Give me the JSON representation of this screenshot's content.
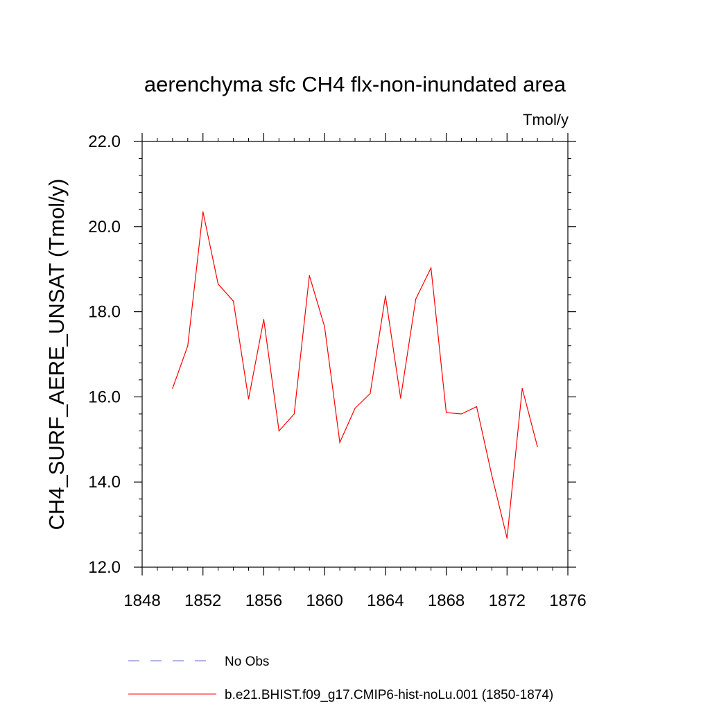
{
  "chart_data": {
    "type": "line",
    "title": "aerenchyma sfc CH4 flx-non-inundated area",
    "units_label": "Tmol/y",
    "ylabel": "CH4_SURF_AERE_UNSAT  (Tmol/y)",
    "xlabel": "",
    "xlim": [
      1848,
      1876
    ],
    "ylim": [
      12.0,
      22.0
    ],
    "x_ticks": [
      1848,
      1852,
      1856,
      1860,
      1864,
      1868,
      1872,
      1876
    ],
    "x_tick_labels": [
      "1848",
      "1852",
      "1856",
      "1860",
      "1864",
      "1868",
      "1872",
      "1876"
    ],
    "y_ticks": [
      12.0,
      14.0,
      16.0,
      18.0,
      20.0,
      22.0
    ],
    "y_tick_labels": [
      "12.0",
      "14.0",
      "16.0",
      "18.0",
      "20.0",
      "22.0"
    ],
    "grid": false,
    "legend_placement": "bottom",
    "x": [
      1850,
      1851,
      1852,
      1853,
      1854,
      1855,
      1856,
      1857,
      1858,
      1859,
      1860,
      1861,
      1862,
      1863,
      1864,
      1865,
      1866,
      1867,
      1868,
      1869,
      1870,
      1871,
      1872,
      1873,
      1874
    ],
    "series": [
      {
        "name": "b.e21.BHIST.f09_g17.CMIP6-hist-noLu.001 (1850-1874)",
        "color": "#ff0000",
        "values": [
          16.2,
          17.2,
          20.35,
          18.65,
          18.25,
          15.95,
          17.82,
          15.2,
          15.6,
          18.85,
          17.65,
          14.93,
          15.73,
          16.08,
          18.37,
          15.97,
          18.3,
          19.03,
          15.63,
          15.6,
          15.77,
          14.15,
          12.68,
          16.2,
          14.83
        ]
      }
    ],
    "legend": [
      {
        "label": "No Obs",
        "color": "#6a6acd",
        "style": "dashed"
      },
      {
        "label": "b.e21.BHIST.f09_g17.CMIP6-hist-noLu.001 (1850-1874)",
        "color": "#ff0000",
        "style": "solid"
      }
    ]
  }
}
